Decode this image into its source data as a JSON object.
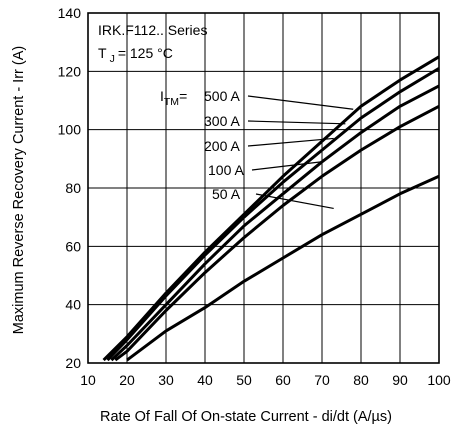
{
  "chart_data": {
    "type": "line",
    "xlabel": "Rate Of Fall Of On-state Current - di/dt (A/µs)",
    "ylabel": "Maximum Reverse Recovery Current - Irr (A)",
    "xlim": [
      10,
      100
    ],
    "ylim": [
      20,
      140
    ],
    "xticks": [
      "10",
      "20",
      "30",
      "40",
      "50",
      "60",
      "70",
      "80",
      "90",
      "100"
    ],
    "yticks": [
      "20",
      "40",
      "60",
      "80",
      "100",
      "120",
      "140"
    ],
    "grid": true,
    "annotation": {
      "series_title": "IRK.F112.. Series",
      "temp_symbol": "T",
      "temp_sub": "J",
      "temp_value": "= 125 °C",
      "current_symbol": "I",
      "current_sub": "TM",
      "current_eq": "="
    },
    "series": [
      {
        "name": "500 A",
        "x": [
          14,
          20,
          30,
          40,
          50,
          60,
          70,
          80,
          90,
          100
        ],
        "y": [
          21,
          29,
          44,
          58,
          71,
          84,
          96,
          108,
          117,
          125
        ]
      },
      {
        "name": "300 A",
        "x": [
          15,
          20,
          30,
          40,
          50,
          60,
          70,
          80,
          90,
          100
        ],
        "y": [
          21,
          28,
          43,
          57,
          70,
          82,
          93,
          104,
          113,
          121
        ]
      },
      {
        "name": "200 A",
        "x": [
          16,
          20,
          30,
          40,
          50,
          60,
          70,
          80,
          90,
          100
        ],
        "y": [
          21,
          26,
          40,
          54,
          67,
          78,
          89,
          99,
          108,
          115
        ]
      },
      {
        "name": "100 A",
        "x": [
          17,
          20,
          30,
          40,
          50,
          60,
          70,
          80,
          90,
          100
        ],
        "y": [
          21,
          24,
          38,
          51,
          63,
          74,
          84,
          93,
          101,
          108
        ]
      },
      {
        "name": "50 A",
        "x": [
          20,
          30,
          40,
          50,
          60,
          70,
          80,
          90,
          100
        ],
        "y": [
          21,
          31,
          39,
          48,
          56,
          64,
          71,
          78,
          84
        ]
      }
    ]
  }
}
